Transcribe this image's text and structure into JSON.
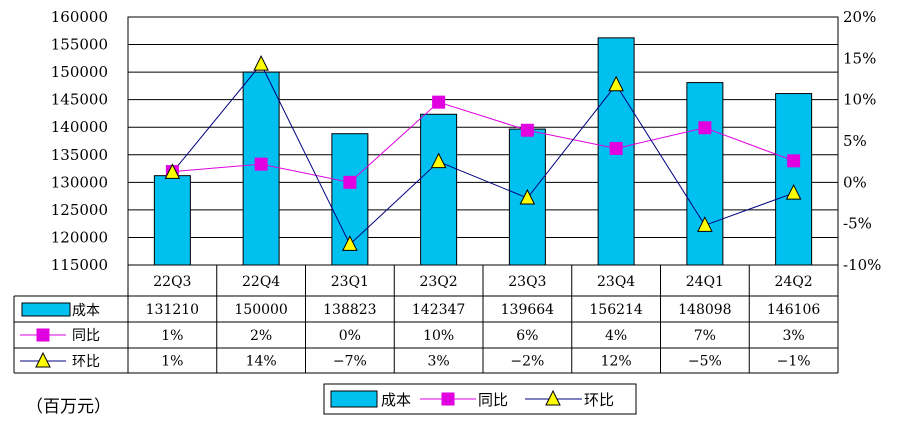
{
  "chart_data": {
    "type": "bar",
    "categories": [
      "22Q3",
      "22Q4",
      "23Q1",
      "23Q2",
      "23Q3",
      "23Q4",
      "24Q1",
      "24Q2"
    ],
    "series": [
      {
        "name": "成本",
        "kind": "bar",
        "axis": "left",
        "values": [
          131210,
          150000,
          138823,
          142347,
          139664,
          156214,
          148098,
          146106
        ],
        "labels": [
          "131210",
          "150000",
          "138823",
          "142347",
          "139664",
          "156214",
          "148098",
          "146106"
        ],
        "color": "#00C0F0"
      },
      {
        "name": "同比",
        "kind": "line",
        "axis": "right",
        "marker": "square",
        "values": [
          1.3,
          2.2,
          0,
          9.7,
          6.3,
          4.1,
          6.6,
          2.6
        ],
        "labels": [
          "1%",
          "2%",
          "0%",
          "10%",
          "6%",
          "4%",
          "7%",
          "3%"
        ],
        "color": "#E000E0"
      },
      {
        "name": "环比",
        "kind": "line",
        "axis": "right",
        "marker": "triangle",
        "values": [
          1.2,
          14.3,
          -7.5,
          2.5,
          -1.9,
          11.8,
          -5.2,
          -1.3
        ],
        "labels": [
          "1%",
          "14%",
          "−7%",
          "3%",
          "−2%",
          "12%",
          "−5%",
          "−1%"
        ],
        "color": "#000080"
      }
    ],
    "y_left": {
      "min": 115000,
      "max": 160000,
      "step": 5000,
      "ticks": [
        "160000",
        "155000",
        "150000",
        "145000",
        "140000",
        "135000",
        "130000",
        "125000",
        "120000",
        "115000"
      ]
    },
    "y_right": {
      "min": -10,
      "max": 20,
      "step": 5,
      "ticks": [
        "20%",
        "15%",
        "10%",
        "5%",
        "0%",
        "-5%",
        "-10%"
      ]
    },
    "grid": true,
    "legend_position": "bottom-center",
    "unit_label": "（百万元）"
  },
  "colors": {
    "bar": "#00C0F0",
    "yoy": "#E000E0",
    "qoq": "#000080",
    "triangle_fill": "#FFFF00"
  }
}
